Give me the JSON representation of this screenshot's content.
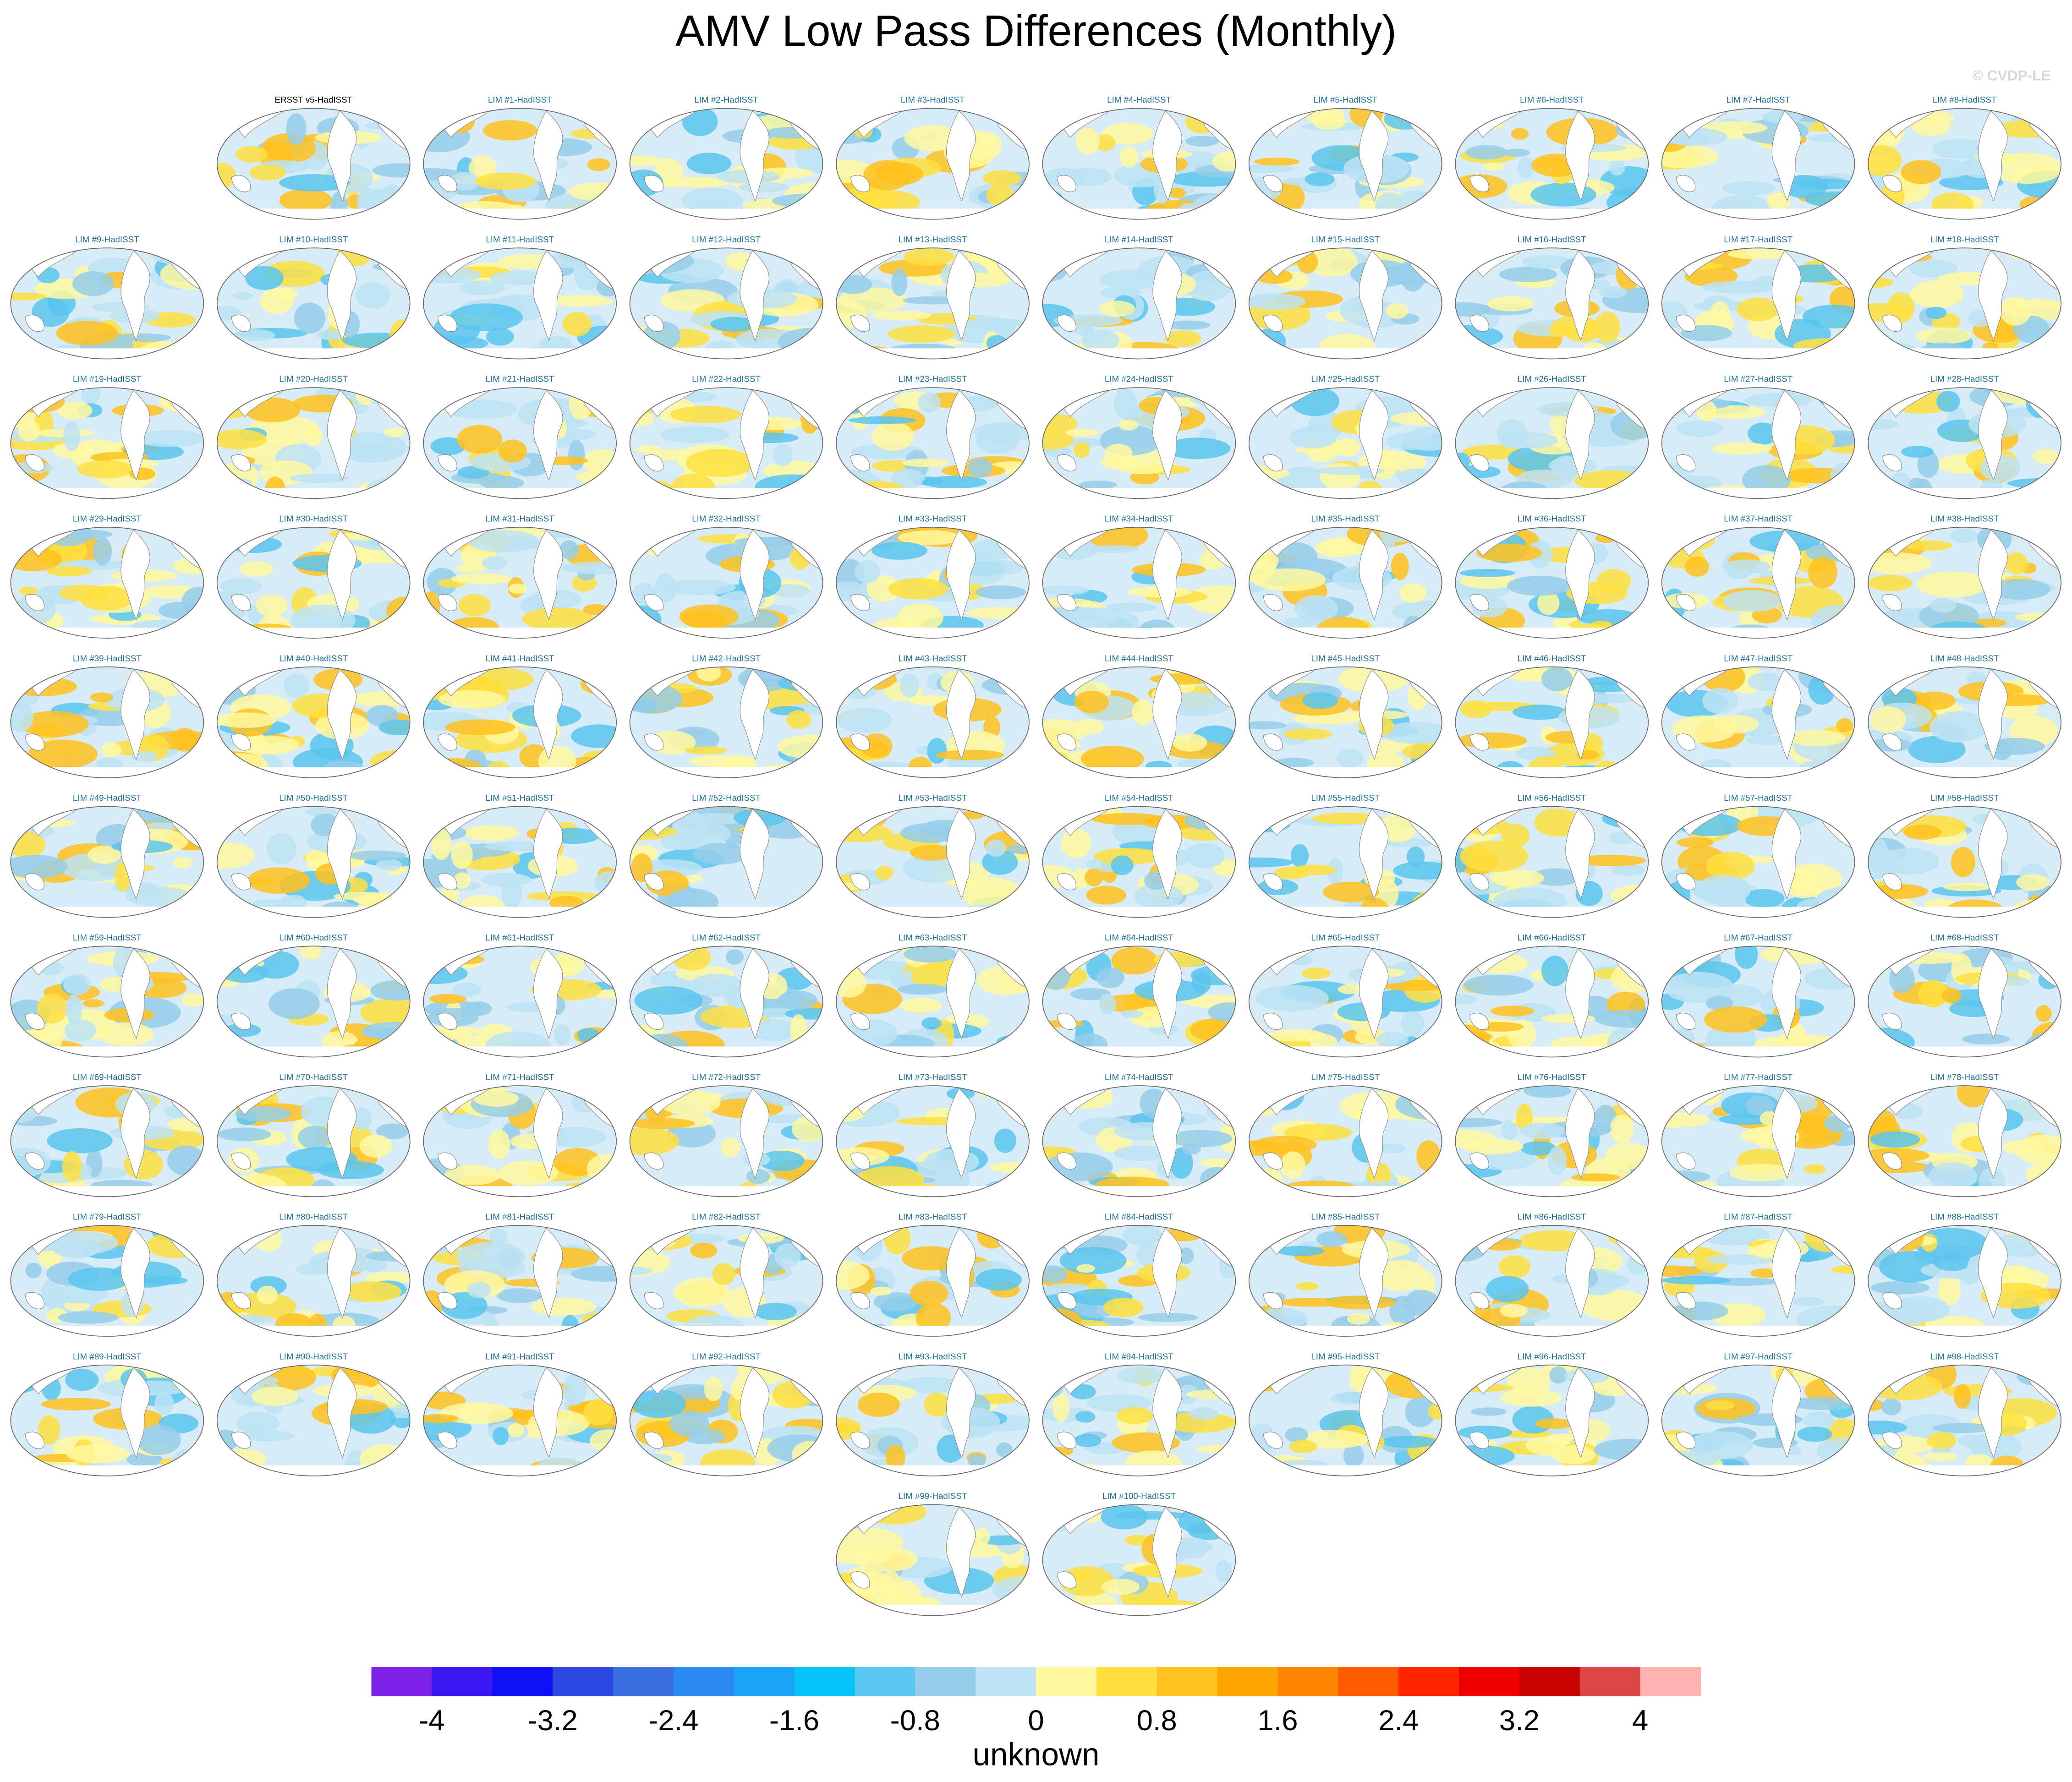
{
  "chart_data": {
    "type": "map-panels",
    "title": "AMV Low Pass Differences (Monthly)",
    "copyright": "© CVDP-LE",
    "panels": [
      {
        "title": "ERSST v5-HadISST",
        "color": "#000000"
      },
      {
        "title": "LIM #1-HadISST",
        "color": "#1f6f96"
      },
      {
        "title": "LIM #2-HadISST",
        "color": "#1f6f96"
      },
      {
        "title": "LIM #3-HadISST",
        "color": "#1f6f96"
      },
      {
        "title": "LIM #4-HadISST",
        "color": "#1f6f96"
      },
      {
        "title": "LIM #5-HadISST",
        "color": "#1f6f96"
      },
      {
        "title": "LIM #6-HadISST",
        "color": "#1f6f96"
      },
      {
        "title": "LIM #7-HadISST",
        "color": "#1f6f96"
      },
      {
        "title": "LIM #8-HadISST",
        "color": "#1f6f96"
      },
      {
        "title": "LIM #9-HadISST",
        "color": "#1f6f96"
      },
      {
        "title": "LIM #10-HadISST",
        "color": "#1f6f96"
      },
      {
        "title": "LIM #11-HadISST",
        "color": "#1f6f96"
      },
      {
        "title": "LIM #12-HadISST",
        "color": "#1f6f96"
      },
      {
        "title": "LIM #13-HadISST",
        "color": "#1f6f96"
      },
      {
        "title": "LIM #14-HadISST",
        "color": "#1f6f96"
      },
      {
        "title": "LIM #15-HadISST",
        "color": "#1f6f96"
      },
      {
        "title": "LIM #16-HadISST",
        "color": "#1f6f96"
      },
      {
        "title": "LIM #17-HadISST",
        "color": "#1f6f96"
      },
      {
        "title": "LIM #18-HadISST",
        "color": "#1f6f96"
      },
      {
        "title": "LIM #19-HadISST",
        "color": "#1f6f96"
      },
      {
        "title": "LIM #20-HadISST",
        "color": "#1f6f96"
      },
      {
        "title": "LIM #21-HadISST",
        "color": "#1f6f96"
      },
      {
        "title": "LIM #22-HadISST",
        "color": "#1f6f96"
      },
      {
        "title": "LIM #23-HadISST",
        "color": "#1f6f96"
      },
      {
        "title": "LIM #24-HadISST",
        "color": "#1f6f96"
      },
      {
        "title": "LIM #25-HadISST",
        "color": "#1f6f96"
      },
      {
        "title": "LIM #26-HadISST",
        "color": "#1f6f96"
      },
      {
        "title": "LIM #27-HadISST",
        "color": "#1f6f96"
      },
      {
        "title": "LIM #28-HadISST",
        "color": "#1f6f96"
      },
      {
        "title": "LIM #29-HadISST",
        "color": "#1f6f96"
      },
      {
        "title": "LIM #30-HadISST",
        "color": "#1f6f96"
      },
      {
        "title": "LIM #31-HadISST",
        "color": "#1f6f96"
      },
      {
        "title": "LIM #32-HadISST",
        "color": "#1f6f96"
      },
      {
        "title": "LIM #33-HadISST",
        "color": "#1f6f96"
      },
      {
        "title": "LIM #34-HadISST",
        "color": "#1f6f96"
      },
      {
        "title": "LIM #35-HadISST",
        "color": "#1f6f96"
      },
      {
        "title": "LIM #36-HadISST",
        "color": "#1f6f96"
      },
      {
        "title": "LIM #37-HadISST",
        "color": "#1f6f96"
      },
      {
        "title": "LIM #38-HadISST",
        "color": "#1f6f96"
      },
      {
        "title": "LIM #39-HadISST",
        "color": "#1f6f96"
      },
      {
        "title": "LIM #40-HadISST",
        "color": "#1f6f96"
      },
      {
        "title": "LIM #41-HadISST",
        "color": "#1f6f96"
      },
      {
        "title": "LIM #42-HadISST",
        "color": "#1f6f96"
      },
      {
        "title": "LIM #43-HadISST",
        "color": "#1f6f96"
      },
      {
        "title": "LIM #44-HadISST",
        "color": "#1f6f96"
      },
      {
        "title": "LIM #45-HadISST",
        "color": "#1f6f96"
      },
      {
        "title": "LIM #46-HadISST",
        "color": "#1f6f96"
      },
      {
        "title": "LIM #47-HadISST",
        "color": "#1f6f96"
      },
      {
        "title": "LIM #48-HadISST",
        "color": "#1f6f96"
      },
      {
        "title": "LIM #49-HadISST",
        "color": "#1f6f96"
      },
      {
        "title": "LIM #50-HadISST",
        "color": "#1f6f96"
      },
      {
        "title": "LIM #51-HadISST",
        "color": "#1f6f96"
      },
      {
        "title": "LIM #52-HadISST",
        "color": "#1f6f96"
      },
      {
        "title": "LIM #53-HadISST",
        "color": "#1f6f96"
      },
      {
        "title": "LIM #54-HadISST",
        "color": "#1f6f96"
      },
      {
        "title": "LIM #55-HadISST",
        "color": "#1f6f96"
      },
      {
        "title": "LIM #56-HadISST",
        "color": "#1f6f96"
      },
      {
        "title": "LIM #57-HadISST",
        "color": "#1f6f96"
      },
      {
        "title": "LIM #58-HadISST",
        "color": "#1f6f96"
      },
      {
        "title": "LIM #59-HadISST",
        "color": "#1f6f96"
      },
      {
        "title": "LIM #60-HadISST",
        "color": "#1f6f96"
      },
      {
        "title": "LIM #61-HadISST",
        "color": "#1f6f96"
      },
      {
        "title": "LIM #62-HadISST",
        "color": "#1f6f96"
      },
      {
        "title": "LIM #63-HadISST",
        "color": "#1f6f96"
      },
      {
        "title": "LIM #64-HadISST",
        "color": "#1f6f96"
      },
      {
        "title": "LIM #65-HadISST",
        "color": "#1f6f96"
      },
      {
        "title": "LIM #66-HadISST",
        "color": "#1f6f96"
      },
      {
        "title": "LIM #67-HadISST",
        "color": "#1f6f96"
      },
      {
        "title": "LIM #68-HadISST",
        "color": "#1f6f96"
      },
      {
        "title": "LIM #69-HadISST",
        "color": "#1f6f96"
      },
      {
        "title": "LIM #70-HadISST",
        "color": "#1f6f96"
      },
      {
        "title": "LIM #71-HadISST",
        "color": "#1f6f96"
      },
      {
        "title": "LIM #72-HadISST",
        "color": "#1f6f96"
      },
      {
        "title": "LIM #73-HadISST",
        "color": "#1f6f96"
      },
      {
        "title": "LIM #74-HadISST",
        "color": "#1f6f96"
      },
      {
        "title": "LIM #75-HadISST",
        "color": "#1f6f96"
      },
      {
        "title": "LIM #76-HadISST",
        "color": "#1f6f96"
      },
      {
        "title": "LIM #77-HadISST",
        "color": "#1f6f96"
      },
      {
        "title": "LIM #78-HadISST",
        "color": "#1f6f96"
      },
      {
        "title": "LIM #79-HadISST",
        "color": "#1f6f96"
      },
      {
        "title": "LIM #80-HadISST",
        "color": "#1f6f96"
      },
      {
        "title": "LIM #81-HadISST",
        "color": "#1f6f96"
      },
      {
        "title": "LIM #82-HadISST",
        "color": "#1f6f96"
      },
      {
        "title": "LIM #83-HadISST",
        "color": "#1f6f96"
      },
      {
        "title": "LIM #84-HadISST",
        "color": "#1f6f96"
      },
      {
        "title": "LIM #85-HadISST",
        "color": "#1f6f96"
      },
      {
        "title": "LIM #86-HadISST",
        "color": "#1f6f96"
      },
      {
        "title": "LIM #87-HadISST",
        "color": "#1f6f96"
      },
      {
        "title": "LIM #88-HadISST",
        "color": "#1f6f96"
      },
      {
        "title": "LIM #89-HadISST",
        "color": "#1f6f96"
      },
      {
        "title": "LIM #90-HadISST",
        "color": "#1f6f96"
      },
      {
        "title": "LIM #91-HadISST",
        "color": "#1f6f96"
      },
      {
        "title": "LIM #92-HadISST",
        "color": "#1f6f96"
      },
      {
        "title": "LIM #93-HadISST",
        "color": "#1f6f96"
      },
      {
        "title": "LIM #94-HadISST",
        "color": "#1f6f96"
      },
      {
        "title": "LIM #95-HadISST",
        "color": "#1f6f96"
      },
      {
        "title": "LIM #96-HadISST",
        "color": "#1f6f96"
      },
      {
        "title": "LIM #97-HadISST",
        "color": "#1f6f96"
      },
      {
        "title": "LIM #98-HadISST",
        "color": "#1f6f96"
      },
      {
        "title": "LIM #99-HadISST",
        "color": "#1f6f96"
      },
      {
        "title": "LIM #100-HadISST",
        "color": "#1f6f96"
      }
    ],
    "colorbar": {
      "label": "unknown",
      "xlim": [
        -4.4,
        4.4
      ],
      "xticks": [
        -4,
        -3.2,
        -2.4,
        -1.6,
        -0.8,
        0,
        0.8,
        1.6,
        2.4,
        3.2,
        4
      ],
      "colors": [
        "#7b22e6",
        "#3a16f0",
        "#0f10f5",
        "#2c48e0",
        "#3b6fe0",
        "#2a88f0",
        "#1ba4f5",
        "#05c3f8",
        "#5bc6ef",
        "#96ceea",
        "#bde3f5",
        "#fff8a0",
        "#ffe040",
        "#ffc21e",
        "#ffa500",
        "#ff8500",
        "#ff5a00",
        "#ff2500",
        "#f00000",
        "#c80000",
        "#dc4646",
        "#ffb4b4"
      ]
    }
  }
}
